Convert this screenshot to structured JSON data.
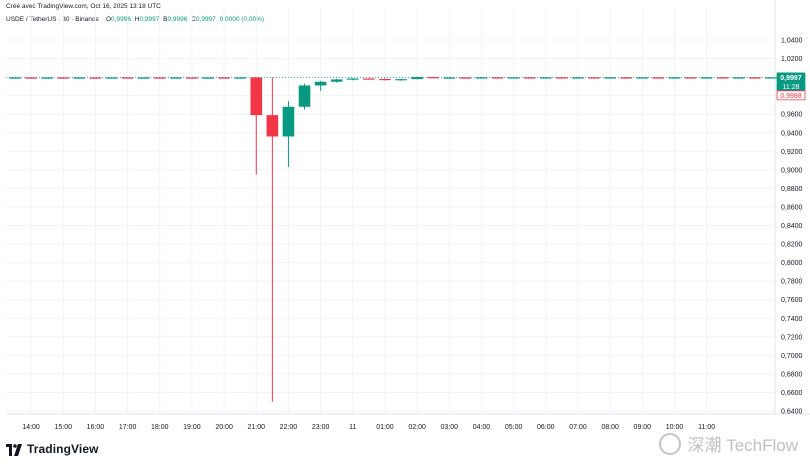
{
  "header": {
    "created": "Créé avec TradingView.com, Oct 16, 2025 13:18 UTC",
    "symbol": "USDE / TetherUS · 30 · Binance",
    "ohlc": [
      {
        "label": "O",
        "value": "0,9996"
      },
      {
        "label": "H",
        "value": "0,9997"
      },
      {
        "label": "B",
        "value": "0,9996"
      },
      {
        "label": "C",
        "value": "0,9997"
      },
      {
        "label": "",
        "value": "0,0000 (0,00%)"
      }
    ]
  },
  "price_tags": {
    "last": "0,9997",
    "countdown": "11:28",
    "low": "0,9988"
  },
  "branding": {
    "logo_text": "TradingView",
    "watermark": "深潮 TechFlow"
  },
  "colors": {
    "up": "#089981",
    "down": "#f23645",
    "grid": "#f0f3fa",
    "axis_text": "#131722"
  },
  "chart_data": {
    "type": "candlestick",
    "title": "USDE / TetherUS · 30 · Binance",
    "ylim": [
      0.64,
      1.05
    ],
    "y_ticks": [
      "1,0400",
      "1,0200",
      "1,0000",
      "0,9800",
      "0,9600",
      "0,9400",
      "0,9200",
      "0,9000",
      "0,8800",
      "0,8600",
      "0,8400",
      "0,8200",
      "0,8000",
      "0,7800",
      "0,7600",
      "0,7400",
      "0,7200",
      "0,7000",
      "0,6800",
      "0,6600",
      "0,6400"
    ],
    "x_ticks": [
      "14:00",
      "15:00",
      "16:00",
      "17:00",
      "18:00",
      "19:00",
      "20:00",
      "21:00",
      "22:00",
      "23:00",
      "11",
      "01:00",
      "02:00",
      "03:00",
      "04:00",
      "05:00",
      "06:00",
      "07:00",
      "08:00",
      "09:00",
      "10:00",
      "11:00"
    ],
    "candles": [
      {
        "t": "13:30",
        "o": 0.9995,
        "h": 0.9997,
        "l": 0.9993,
        "c": 0.9996
      },
      {
        "t": "14:00",
        "o": 0.9996,
        "h": 0.9997,
        "l": 0.9994,
        "c": 0.9995
      },
      {
        "t": "14:30",
        "o": 0.9995,
        "h": 0.9997,
        "l": 0.9994,
        "c": 0.9996
      },
      {
        "t": "15:00",
        "o": 0.9996,
        "h": 0.9997,
        "l": 0.9994,
        "c": 0.9995
      },
      {
        "t": "15:30",
        "o": 0.9995,
        "h": 0.9997,
        "l": 0.9994,
        "c": 0.9996
      },
      {
        "t": "16:00",
        "o": 0.9996,
        "h": 0.9997,
        "l": 0.9994,
        "c": 0.9995
      },
      {
        "t": "16:30",
        "o": 0.9995,
        "h": 0.9997,
        "l": 0.9994,
        "c": 0.9996
      },
      {
        "t": "17:00",
        "o": 0.9996,
        "h": 0.9997,
        "l": 0.9994,
        "c": 0.9995
      },
      {
        "t": "17:30",
        "o": 0.9995,
        "h": 0.9997,
        "l": 0.9994,
        "c": 0.9996
      },
      {
        "t": "18:00",
        "o": 0.9996,
        "h": 0.9997,
        "l": 0.9994,
        "c": 0.9995
      },
      {
        "t": "18:30",
        "o": 0.9995,
        "h": 0.9997,
        "l": 0.9994,
        "c": 0.9996
      },
      {
        "t": "19:00",
        "o": 0.9996,
        "h": 0.9997,
        "l": 0.9994,
        "c": 0.9995
      },
      {
        "t": "19:30",
        "o": 0.9995,
        "h": 0.9997,
        "l": 0.9994,
        "c": 0.9996
      },
      {
        "t": "20:00",
        "o": 0.9996,
        "h": 0.9997,
        "l": 0.9994,
        "c": 0.9995
      },
      {
        "t": "20:30",
        "o": 0.9995,
        "h": 0.9997,
        "l": 0.9994,
        "c": 0.9996
      },
      {
        "t": "21:00",
        "o": 0.9996,
        "h": 0.9998,
        "l": 0.895,
        "c": 0.959
      },
      {
        "t": "21:30",
        "o": 0.959,
        "h": 0.9997,
        "l": 0.65,
        "c": 0.936
      },
      {
        "t": "22:00",
        "o": 0.936,
        "h": 0.974,
        "l": 0.903,
        "c": 0.968
      },
      {
        "t": "22:30",
        "o": 0.968,
        "h": 0.993,
        "l": 0.965,
        "c": 0.991
      },
      {
        "t": "23:00",
        "o": 0.991,
        "h": 0.996,
        "l": 0.985,
        "c": 0.995
      },
      {
        "t": "23:30",
        "o": 0.995,
        "h": 0.998,
        "l": 0.994,
        "c": 0.9975
      },
      {
        "t": "00:00",
        "o": 0.9975,
        "h": 0.999,
        "l": 0.9965,
        "c": 0.9985
      },
      {
        "t": "00:30",
        "o": 0.9985,
        "h": 0.9992,
        "l": 0.9978,
        "c": 0.998
      },
      {
        "t": "01:00",
        "o": 0.998,
        "h": 0.9988,
        "l": 0.9962,
        "c": 0.9968
      },
      {
        "t": "01:30",
        "o": 0.9968,
        "h": 0.9985,
        "l": 0.996,
        "c": 0.9978
      },
      {
        "t": "02:00",
        "o": 0.9978,
        "h": 1.0004,
        "l": 0.9975,
        "c": 1.0
      },
      {
        "t": "02:30",
        "o": 1.0,
        "h": 1.0003,
        "l": 0.999,
        "c": 0.9994
      },
      {
        "t": "03:00",
        "o": 0.9994,
        "h": 0.9999,
        "l": 0.9988,
        "c": 0.9996
      },
      {
        "t": "03:30",
        "o": 0.9996,
        "h": 0.9999,
        "l": 0.9992,
        "c": 0.9995
      },
      {
        "t": "04:00",
        "o": 0.9995,
        "h": 0.9999,
        "l": 0.9992,
        "c": 0.9997
      },
      {
        "t": "04:30",
        "o": 0.9997,
        "h": 0.9999,
        "l": 0.9993,
        "c": 0.9996
      },
      {
        "t": "05:00",
        "o": 0.9996,
        "h": 0.9999,
        "l": 0.9993,
        "c": 0.9997
      },
      {
        "t": "05:30",
        "o": 0.9997,
        "h": 0.9999,
        "l": 0.9993,
        "c": 0.9996
      },
      {
        "t": "06:00",
        "o": 0.9996,
        "h": 0.9999,
        "l": 0.9993,
        "c": 0.9997
      },
      {
        "t": "06:30",
        "o": 0.9997,
        "h": 0.9999,
        "l": 0.9993,
        "c": 0.9996
      },
      {
        "t": "07:00",
        "o": 0.9996,
        "h": 0.9999,
        "l": 0.9993,
        "c": 0.9997
      },
      {
        "t": "07:30",
        "o": 0.9997,
        "h": 0.9999,
        "l": 0.9993,
        "c": 0.9996
      },
      {
        "t": "08:00",
        "o": 0.9996,
        "h": 0.9999,
        "l": 0.9993,
        "c": 0.9997
      },
      {
        "t": "08:30",
        "o": 0.9997,
        "h": 0.9999,
        "l": 0.9993,
        "c": 0.9996
      },
      {
        "t": "09:00",
        "o": 0.9996,
        "h": 0.9999,
        "l": 0.9993,
        "c": 0.9997
      },
      {
        "t": "09:30",
        "o": 0.9997,
        "h": 0.9999,
        "l": 0.9993,
        "c": 0.9996
      },
      {
        "t": "10:00",
        "o": 0.9996,
        "h": 0.9999,
        "l": 0.9993,
        "c": 0.9997
      },
      {
        "t": "10:30",
        "o": 0.9997,
        "h": 0.9999,
        "l": 0.9993,
        "c": 0.9996
      },
      {
        "t": "11:00",
        "o": 0.9996,
        "h": 0.9999,
        "l": 0.9993,
        "c": 0.9997
      },
      {
        "t": "11:30",
        "o": 0.9997,
        "h": 0.9999,
        "l": 0.9993,
        "c": 0.9996
      },
      {
        "t": "12:00",
        "o": 0.9996,
        "h": 0.9999,
        "l": 0.9993,
        "c": 0.9997
      },
      {
        "t": "12:30",
        "o": 0.9997,
        "h": 0.9999,
        "l": 0.9993,
        "c": 0.9996
      },
      {
        "t": "13:00",
        "o": 0.9996,
        "h": 0.9997,
        "l": 0.9996,
        "c": 0.9997
      }
    ],
    "last_price": 0.9997,
    "grid": true
  }
}
